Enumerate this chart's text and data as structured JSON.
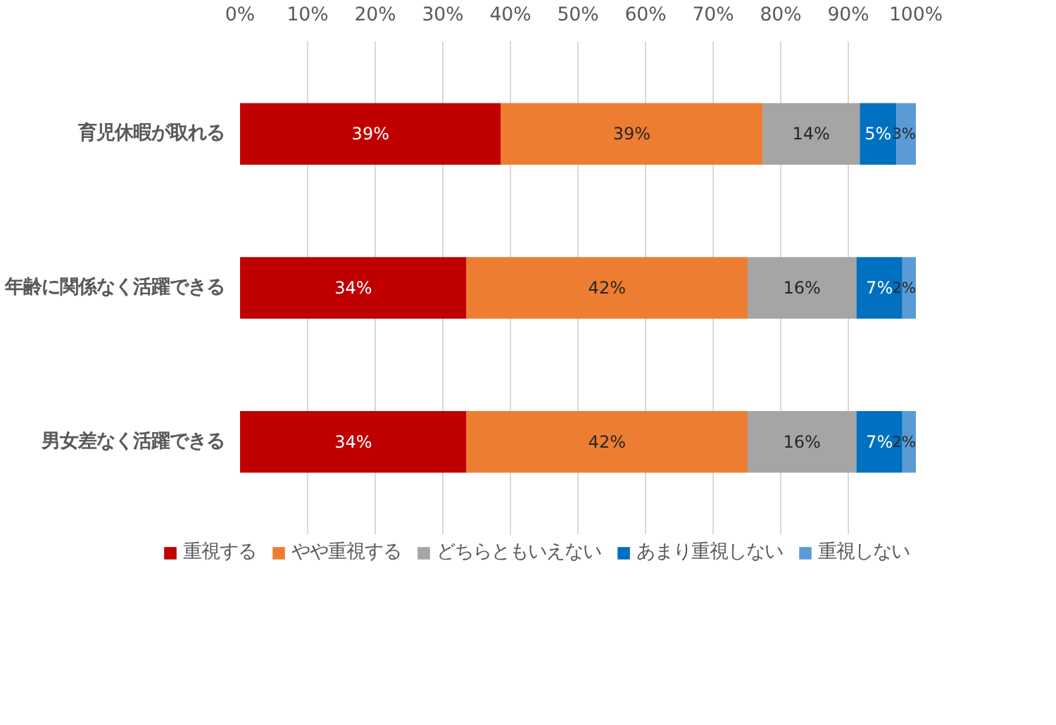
{
  "chart_data": {
    "type": "bar",
    "orientation": "horizontal",
    "stacked": true,
    "categories": [
      "育児休暇が取れる",
      "年齢に関係なく活躍できる",
      "男女差なく活躍できる"
    ],
    "series": [
      {
        "name": "重視する",
        "color": "#c00000",
        "values": [
          38.6,
          33.5,
          33.5
        ],
        "value_labels": [
          "39%",
          "34%",
          "34%"
        ]
      },
      {
        "name": "やや重視する",
        "color": "#ed7d31",
        "values": [
          38.7,
          41.6,
          41.6
        ],
        "value_labels": [
          "39%",
          "42%",
          "42%"
        ]
      },
      {
        "name": "どちらともいえない",
        "color": "#a5a5a5",
        "values": [
          14.4,
          16.1,
          16.1
        ],
        "value_labels": [
          "14%",
          "16%",
          "16%"
        ]
      },
      {
        "name": "あまり重視しない",
        "color": "#0070c0",
        "values": [
          5.4,
          6.8,
          6.8
        ],
        "value_labels": [
          "5%",
          "7%",
          "7%"
        ]
      },
      {
        "name": "重視しない",
        "color": "#5b9bd5",
        "values": [
          2.9,
          2.0,
          2.0
        ],
        "value_labels": [
          "3%",
          "2%",
          "2%"
        ]
      }
    ],
    "xlim": [
      0,
      100
    ],
    "xticks": [
      {
        "value": 0,
        "label": "0%"
      },
      {
        "value": 10,
        "label": "10%"
      },
      {
        "value": 20,
        "label": "20%"
      },
      {
        "value": 30,
        "label": "30%"
      },
      {
        "value": 40,
        "label": "40%"
      },
      {
        "value": 50,
        "label": "50%"
      },
      {
        "value": 60,
        "label": "60%"
      },
      {
        "value": 70,
        "label": "70%"
      },
      {
        "value": 80,
        "label": "80%"
      },
      {
        "value": 90,
        "label": "90%"
      },
      {
        "value": 100,
        "label": "100%"
      }
    ],
    "grid": "x",
    "legend": "bottom"
  }
}
